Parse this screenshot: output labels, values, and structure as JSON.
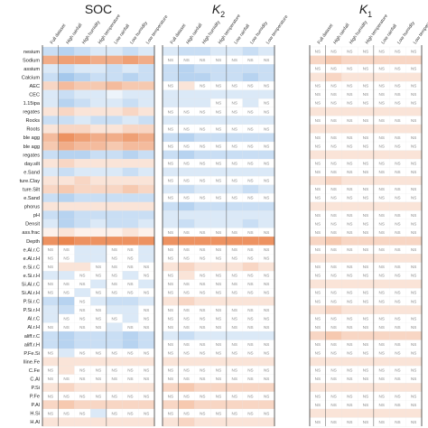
{
  "chart_data": {
    "type": "heatmap",
    "panels": [
      {
        "title": "SOC",
        "title_base": "SOC",
        "title_sub": ""
      },
      {
        "title": "K2",
        "title_base": "K",
        "title_sub": "2"
      },
      {
        "title": "K1",
        "title_base": "K",
        "title_sub": "1"
      }
    ],
    "columns": [
      "Full dataset",
      "High rainfall",
      "High humidity",
      "High temperature",
      "Low rainfall",
      "Low humidity",
      "Low temperature"
    ],
    "rows": [
      "nesium",
      "Sodium",
      "assium",
      "Calcium",
      "AEC",
      "CEC",
      "1.15ipa",
      "regates",
      "Rocks",
      "Roots",
      "ble agg",
      "ble agg",
      "regates",
      "day.silt",
      "e.Sand",
      "ture.Clay",
      "ture.Silt",
      "e.Sand",
      "phorus",
      "pH",
      "Densit",
      "ass.frac",
      "Depth",
      "e.Al.r.C",
      "e.Al.r.H",
      "e.Si.r.C",
      "e.Si.r.H",
      "Si.Al.r.C",
      "Si.Al.r.H",
      "P.Si.r.C",
      "P.Si.r.H",
      "Al.r.C",
      "Al.r.H",
      "aliff.r.C",
      "aliff.r.H",
      "P.Fe.Si",
      "lline.Fe",
      "C.Fe",
      "C.Al",
      "P.Si",
      "P.Fe",
      "P.Al",
      "H.Si",
      "H.Al"
    ],
    "ns_label": "NS",
    "value_range": [
      -1,
      1
    ],
    "colors": {
      "negative": "#4a90d9",
      "positive": "#e8773a",
      "neutral": "#ffffff"
    },
    "values": [
      [
        [
          -0.3,
          -0.4,
          -0.3,
          -0.2,
          -0.2,
          -0.3,
          -0.2
        ],
        [
          0.6,
          0.7,
          0.7,
          0.6,
          0.6,
          0.7,
          0.6
        ],
        [
          -0.2,
          -0.3,
          -0.2,
          -0.2,
          -0.3,
          -0.2,
          -0.3
        ],
        [
          -0.3,
          -0.5,
          -0.4,
          -0.3,
          -0.3,
          -0.4,
          -0.3
        ],
        [
          0.3,
          0.5,
          0.4,
          0.4,
          0.5,
          0.4,
          0.4
        ],
        [
          -0.2,
          -0.3,
          -0.2,
          -0.2,
          -0.1,
          -0.2,
          -0.2
        ],
        [
          -0.2,
          -0.4,
          -0.3,
          -0.2,
          -0.2,
          -0.3,
          -0.2
        ],
        [
          0.2,
          0.3,
          0.2,
          0.2,
          0.2,
          0.3,
          0.2
        ],
        [
          -0.3,
          -0.3,
          -0.2,
          -0.3,
          -0.3,
          -0.2,
          -0.3
        ],
        [
          0.2,
          0.3,
          0.3,
          0.2,
          0.2,
          0.3,
          0.3
        ],
        [
          0.5,
          0.8,
          0.7,
          0.6,
          0.6,
          0.7,
          0.6
        ],
        [
          0.4,
          0.6,
          0.5,
          0.5,
          0.4,
          0.5,
          0.5
        ],
        [
          -0.3,
          -0.4,
          -0.4,
          -0.3,
          -0.3,
          -0.4,
          -0.3
        ],
        [
          0.2,
          0.3,
          0.2,
          0.2,
          0.2,
          0.2,
          0.2
        ],
        [
          -0.2,
          -0.3,
          -0.2,
          -0.2,
          -0.2,
          -0.3,
          -0.2
        ],
        [
          0.2,
          0.2,
          0.3,
          0.2,
          0.2,
          0.2,
          0.2
        ],
        [
          0.3,
          0.4,
          0.3,
          0.3,
          0.3,
          0.4,
          0.3
        ],
        [
          -0.3,
          -0.4,
          -0.3,
          -0.3,
          -0.3,
          -0.3,
          -0.3
        ],
        [
          0.2,
          0.2,
          0.2,
          0.2,
          0.2,
          0.2,
          0.2
        ],
        [
          -0.3,
          -0.4,
          -0.3,
          -0.3,
          -0.3,
          -0.3,
          -0.3
        ],
        [
          -0.2,
          -0.4,
          -0.3,
          -0.2,
          -0.3,
          -0.3,
          -0.2
        ],
        [
          0.1,
          0.2,
          0.1,
          0.1,
          0.1,
          0.2,
          0.1
        ],
        [
          0.8,
          0.9,
          0.8,
          0.8,
          0.8,
          0.8,
          0.8
        ],
        [
          0,
          0,
          -0.2,
          -0.2,
          0,
          0,
          -0.2
        ],
        [
          0,
          0,
          -0.2,
          -0.2,
          0,
          0,
          -0.2
        ],
        [
          0,
          0.2,
          0.2,
          0,
          0,
          0,
          0
        ],
        [
          -0.2,
          -0.2,
          0,
          0,
          0,
          -0.2,
          0
        ],
        [
          0,
          0,
          0,
          -0.2,
          0,
          0,
          -0.2
        ],
        [
          0,
          0,
          -0.2,
          0,
          0,
          0,
          0
        ],
        [
          -0.3,
          -0.4,
          0,
          -0.2,
          -0.3,
          -0.3,
          -0.2
        ],
        [
          -0.2,
          -0.3,
          0,
          0,
          -0.2,
          -0.2,
          0
        ],
        [
          -0.2,
          0,
          0,
          0,
          0,
          -0.2,
          0
        ],
        [
          0,
          0,
          0,
          0,
          -0.2,
          0,
          0
        ],
        [
          -0.3,
          -0.4,
          -0.3,
          -0.3,
          -0.3,
          -0.4,
          -0.3
        ],
        [
          -0.3,
          -0.4,
          -0.3,
          -0.3,
          -0.3,
          -0.4,
          -0.3
        ],
        [
          0,
          -0.2,
          0,
          0,
          0,
          0,
          0
        ],
        [
          0.2,
          0.2,
          0.2,
          0.2,
          0.2,
          0.2,
          0.2
        ],
        [
          0,
          0.2,
          0,
          0,
          0,
          0,
          0
        ],
        [
          0,
          0,
          0,
          0,
          0,
          0,
          0
        ],
        [
          0.2,
          0.3,
          0.2,
          0.2,
          0.2,
          0.2,
          0.2
        ],
        [
          0,
          0,
          0,
          0,
          0,
          0,
          0
        ],
        [
          0.3,
          0.4,
          0.3,
          0.3,
          0.3,
          0.3,
          0.3
        ],
        [
          0,
          0,
          0,
          -0.2,
          0,
          0,
          0
        ],
        [
          0.2,
          0.2,
          0.2,
          0.2,
          0.2,
          0.2,
          0.2
        ]
      ],
      [
        [
          -0.2,
          -0.3,
          -0.3,
          -0.2,
          -0.2,
          -0.3,
          -0.2
        ],
        [
          0,
          0,
          0,
          0,
          0,
          0,
          0
        ],
        [
          -0.3,
          -0.4,
          -0.3,
          -0.3,
          -0.3,
          -0.3,
          -0.3
        ],
        [
          -0.3,
          -0.4,
          -0.4,
          -0.3,
          -0.3,
          -0.4,
          -0.3
        ],
        [
          0,
          0.2,
          0,
          0,
          0,
          0,
          0
        ],
        [
          -0.2,
          -0.2,
          -0.2,
          -0.2,
          -0.2,
          -0.2,
          -0.2
        ],
        [
          -0.2,
          -0.2,
          -0.2,
          0,
          0,
          -0.2,
          0
        ],
        [
          0,
          0,
          0,
          0,
          0,
          0,
          0
        ],
        [
          -0.2,
          -0.2,
          -0.2,
          -0.2,
          -0.2,
          -0.2,
          -0.2
        ],
        [
          0,
          0,
          0,
          0,
          0,
          0,
          0
        ],
        [
          -0.3,
          -0.4,
          -0.3,
          -0.3,
          -0.3,
          -0.3,
          -0.3
        ],
        [
          0,
          0,
          0,
          0,
          0,
          0,
          0
        ],
        [
          -0.3,
          -0.4,
          -0.3,
          -0.3,
          -0.3,
          -0.3,
          -0.3
        ],
        [
          0,
          0,
          0,
          0,
          0,
          0,
          0
        ],
        [
          -0.2,
          -0.2,
          -0.2,
          -0.2,
          -0.2,
          -0.2,
          -0.2
        ],
        [
          0,
          0,
          0,
          0,
          0,
          0,
          0
        ],
        [
          -0.2,
          -0.3,
          -0.2,
          -0.2,
          -0.2,
          -0.3,
          -0.2
        ],
        [
          0,
          0,
          0,
          0,
          0,
          0,
          0
        ],
        [
          -0.3,
          -0.4,
          -0.3,
          -0.3,
          -0.3,
          -0.3,
          -0.3
        ],
        [
          -0.2,
          -0.2,
          -0.2,
          -0.2,
          -0.2,
          -0.2,
          -0.2
        ],
        [
          -0.2,
          -0.3,
          -0.2,
          -0.2,
          -0.2,
          -0.3,
          -0.2
        ],
        [
          0,
          0,
          0,
          0,
          0,
          0,
          0
        ],
        [
          0.8,
          0.8,
          0.8,
          0.8,
          0.8,
          0.8,
          0.8
        ],
        [
          0,
          0,
          0,
          0,
          0,
          0,
          0
        ],
        [
          0,
          0,
          0,
          0,
          0,
          0,
          0
        ],
        [
          0.2,
          0.3,
          0.2,
          0.2,
          0.2,
          0.3,
          0.2
        ],
        [
          0,
          0.2,
          0,
          0,
          0,
          0,
          0
        ],
        [
          0,
          0,
          0,
          0,
          0,
          0,
          0
        ],
        [
          0,
          0,
          0,
          0,
          0,
          0,
          0
        ],
        [
          0.2,
          0.3,
          0.2,
          0.2,
          0.2,
          0.2,
          0.2
        ],
        [
          0,
          0,
          0,
          0,
          0,
          0,
          0
        ],
        [
          0,
          0,
          0,
          0,
          0,
          0,
          0
        ],
        [
          0,
          0,
          0,
          0,
          0,
          0,
          0
        ],
        [
          -0.2,
          -0.3,
          -0.2,
          -0.2,
          -0.2,
          -0.2,
          -0.2
        ],
        [
          0,
          0,
          0,
          0,
          0,
          0,
          0
        ],
        [
          0,
          0,
          0,
          0,
          0,
          0,
          0
        ],
        [
          0.2,
          0.2,
          0.2,
          0.2,
          0.2,
          0.2,
          0.2
        ],
        [
          0,
          0,
          0,
          0,
          0,
          0,
          0
        ],
        [
          0,
          0,
          0,
          0,
          0,
          0,
          0
        ],
        [
          0.3,
          0.4,
          0.3,
          0.3,
          0.3,
          0.3,
          0.3
        ],
        [
          0,
          0,
          0,
          0,
          0,
          0,
          0
        ],
        [
          0.3,
          0.4,
          0.3,
          0.3,
          0.3,
          0.3,
          0.3
        ],
        [
          0,
          0,
          0,
          0,
          0,
          0,
          0
        ],
        [
          0.2,
          0.3,
          0.2,
          0.2,
          0.2,
          0.2,
          0.2
        ]
      ],
      [
        [
          0,
          0,
          0,
          0,
          0,
          0,
          0
        ],
        [
          0.3,
          0.4,
          0.3,
          0.3,
          0.3,
          0.3,
          0.3
        ],
        [
          0,
          0,
          0,
          0,
          0,
          0,
          0
        ],
        [
          0.2,
          0.3,
          0.2,
          0.2,
          0.2,
          0.2,
          0.2
        ],
        [
          0,
          0,
          0,
          0,
          0,
          0,
          0
        ],
        [
          0,
          0,
          0,
          0,
          0,
          0,
          0
        ],
        [
          0,
          0,
          0,
          0,
          0,
          0,
          0
        ],
        [
          0.2,
          0.2,
          0.2,
          0.2,
          0.2,
          0.2,
          0.2
        ],
        [
          0,
          0,
          0,
          0,
          0,
          0,
          0
        ],
        [
          0.2,
          0.2,
          0.2,
          0.2,
          0.2,
          0.2,
          0.2
        ],
        [
          0,
          0,
          0,
          0,
          0,
          0,
          0
        ],
        [
          0,
          0,
          0,
          0,
          0,
          0,
          0
        ],
        [
          0.2,
          0.2,
          0.2,
          0.2,
          0.2,
          0.2,
          0.2
        ],
        [
          0,
          0,
          0,
          0,
          0,
          0,
          0
        ],
        [
          0,
          0,
          0,
          0,
          0,
          0,
          0
        ],
        [
          0.2,
          0.3,
          0.2,
          0.2,
          0.2,
          0.2,
          0.2
        ],
        [
          0,
          0,
          0,
          0,
          0,
          0,
          0
        ],
        [
          0,
          0,
          0,
          0,
          0,
          0,
          0
        ],
        [
          0.2,
          0.2,
          0.2,
          0.2,
          0.2,
          0.2,
          0.2
        ],
        [
          0,
          0,
          0,
          0,
          0,
          0,
          0
        ],
        [
          0,
          0,
          0,
          0,
          0,
          0,
          0
        ],
        [
          0,
          0,
          0,
          0,
          0,
          0,
          0
        ],
        [
          0.3,
          0.4,
          0.3,
          0.3,
          0.3,
          0.3,
          0.3
        ],
        [
          0,
          0,
          0,
          0,
          0,
          0,
          0
        ],
        [
          0.2,
          0.2,
          0.2,
          0.2,
          0.2,
          0.2,
          0.2
        ],
        [
          0,
          0,
          0,
          0,
          0,
          0,
          0
        ],
        [
          0,
          0,
          0,
          0,
          0,
          0,
          0
        ],
        [
          0.2,
          0.2,
          0.2,
          0.2,
          0.2,
          0.2,
          0.2
        ],
        [
          0,
          0,
          0,
          0,
          0,
          0,
          0
        ],
        [
          0,
          0,
          0,
          0,
          0,
          0,
          0
        ],
        [
          0.2,
          0.3,
          0.2,
          0.2,
          0.2,
          0.2,
          0.2
        ],
        [
          0,
          0,
          0,
          0,
          0,
          0,
          0
        ],
        [
          0,
          0,
          0,
          0,
          0,
          0,
          0
        ],
        [
          0.3,
          0.4,
          0.3,
          0.3,
          0.3,
          0.3,
          0.3
        ],
        [
          0,
          0,
          0,
          0,
          0,
          0,
          0
        ],
        [
          0,
          0,
          0,
          0,
          0,
          0,
          0
        ],
        [
          0.2,
          0.2,
          0.2,
          0.2,
          0.2,
          0.2,
          0.2
        ],
        [
          0,
          0,
          0,
          0,
          0,
          0,
          0
        ],
        [
          0,
          0,
          0,
          0,
          0,
          0,
          0
        ],
        [
          0.2,
          0.2,
          0.2,
          0.2,
          0.2,
          0.2,
          0.2
        ],
        [
          0,
          0,
          0,
          0,
          0,
          0,
          0
        ],
        [
          0,
          0,
          0,
          0,
          0,
          0,
          0
        ],
        [
          0.2,
          0.2,
          0.2,
          0.2,
          0.2,
          0.2,
          0.2
        ],
        [
          0,
          0,
          0,
          0,
          0,
          0,
          0
        ]
      ]
    ]
  }
}
